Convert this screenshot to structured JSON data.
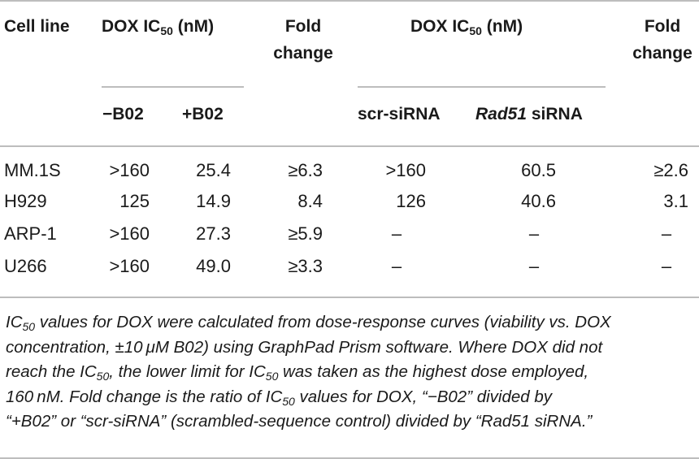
{
  "table": {
    "header": {
      "cell_line": "Cell line",
      "dox_ic50_prefix": "DOX IC",
      "ic50_sub": "50",
      "nm_suffix": "(nM)",
      "fold": "Fold",
      "change": "change",
      "minus_b02": "−B02",
      "plus_b02": "+B02",
      "scr_sirna": "scr-siRNA",
      "rad51": "Rad51",
      "sirna": " siRNA"
    },
    "rows": [
      {
        "cell_line": "MM.1S",
        "minus_b02": ">160",
        "plus_b02": "25.4",
        "fold_b02": "≥6.3",
        "scr": ">160",
        "rad51": "60.5",
        "fold_sirna": "≥2.6"
      },
      {
        "cell_line": "H929",
        "minus_b02": "125",
        "plus_b02": "14.9",
        "fold_b02": "8.4",
        "scr": "126",
        "rad51": "40.6",
        "fold_sirna": "3.1"
      },
      {
        "cell_line": "ARP-1",
        "minus_b02": ">160",
        "plus_b02": "27.3",
        "fold_b02": "≥5.9",
        "scr": "–",
        "rad51": "–",
        "fold_sirna": "–"
      },
      {
        "cell_line": "U266",
        "minus_b02": ">160",
        "plus_b02": "49.0",
        "fold_b02": "≥3.3",
        "scr": "–",
        "rad51": "–",
        "fold_sirna": "–"
      }
    ]
  },
  "caption": {
    "l1a": "IC",
    "l1sub": "50",
    "l1b": " values for DOX were calculated from dose-response curves (viability vs. DOX",
    "l2": "concentration, ±10 μM B02) using GraphPad Prism software. Where DOX did not",
    "l3a": "reach the IC",
    "l3sub": "50",
    "l3b": ", the lower limit for IC",
    "l3sub2": "50",
    "l3c": " was taken as the highest dose employed,",
    "l4a": "160 nM. Fold change is the ratio of IC",
    "l4sub": "50",
    "l4b": " values for DOX, “−B02” divided by",
    "l5": "“+B02” or “scr-siRNA” (scrambled-sequence control) divided by “Rad51 siRNA.”"
  }
}
